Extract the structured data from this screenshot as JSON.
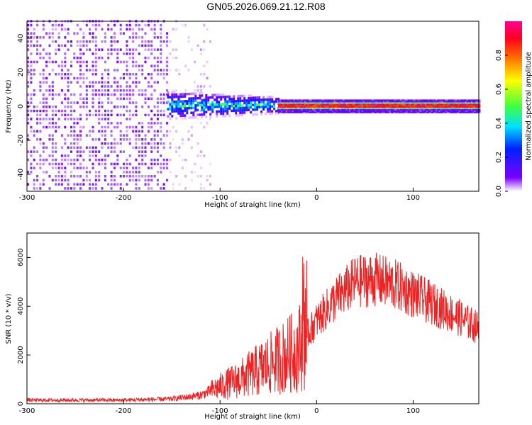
{
  "title": "GN05.2026.069.21.12.R08",
  "chart_data": [
    {
      "type": "heatmap",
      "xlabel": "Height of straight line (km)",
      "ylabel": "Frequency (Hz)",
      "xlim": [
        -300,
        168
      ],
      "ylim": [
        -50,
        50
      ],
      "xticks": [
        "-300",
        "-200",
        "-100",
        "0",
        "100"
      ],
      "xtick_values": [
        -300,
        -200,
        -100,
        0,
        100
      ],
      "yticks": [
        "-40",
        "-20",
        "0",
        "20",
        "40"
      ],
      "ytick_values": [
        -40,
        -20,
        0,
        20,
        40
      ],
      "colorbar": {
        "label": "Normalized spectral amplitude",
        "range": [
          0,
          1
        ],
        "ticks": [
          "0.0",
          "0.2",
          "0.4",
          "0.6",
          "0.8"
        ],
        "tick_values": [
          0.0,
          0.2,
          0.4,
          0.6,
          0.8
        ]
      },
      "colors": [
        "#ffffff",
        "#7b00ff",
        "#0020ff",
        "#00e0ff",
        "#40ff40",
        "#ffff00",
        "#ff6000",
        "#ff0040"
      ],
      "regions": [
        {
          "x_range": [
            -300,
            -155
          ],
          "freq_range": [
            -50,
            50
          ],
          "amplitude": 0.06
        },
        {
          "x_range": [
            -155,
            -110
          ],
          "freq_range": [
            -50,
            50
          ],
          "amplitude": 0.02
        },
        {
          "x_range": [
            -155,
            -40
          ],
          "freq_range": [
            -8,
            8
          ],
          "amplitude": 0.35
        },
        {
          "x_range": [
            -40,
            168
          ],
          "freq_range": [
            -3,
            3
          ],
          "amplitude": 0.85
        }
      ]
    },
    {
      "type": "line",
      "xlabel": "Height of straight line (km)",
      "ylabel": "SNR (10 * v/v)",
      "xlim": [
        -300,
        168
      ],
      "ylim": [
        0,
        7000
      ],
      "xticks": [
        "-300",
        "-200",
        "-100",
        "0",
        "100"
      ],
      "xtick_values": [
        -300,
        -200,
        -100,
        0,
        100
      ],
      "yticks": [
        "0",
        "2000",
        "4000",
        "6000"
      ],
      "ytick_values": [
        0,
        2000,
        4000,
        6000
      ],
      "color": "#ee2222",
      "envelope": {
        "x": [
          -300,
          -200,
          -150,
          -120,
          -100,
          -80,
          -60,
          -40,
          -20,
          -10,
          0,
          20,
          40,
          60,
          80,
          100,
          120,
          140,
          168
        ],
        "y": [
          150,
          150,
          200,
          350,
          700,
          1000,
          1400,
          1800,
          2200,
          2800,
          3400,
          4300,
          5000,
          5100,
          4900,
          4500,
          4100,
          3700,
          3100
        ]
      }
    }
  ]
}
